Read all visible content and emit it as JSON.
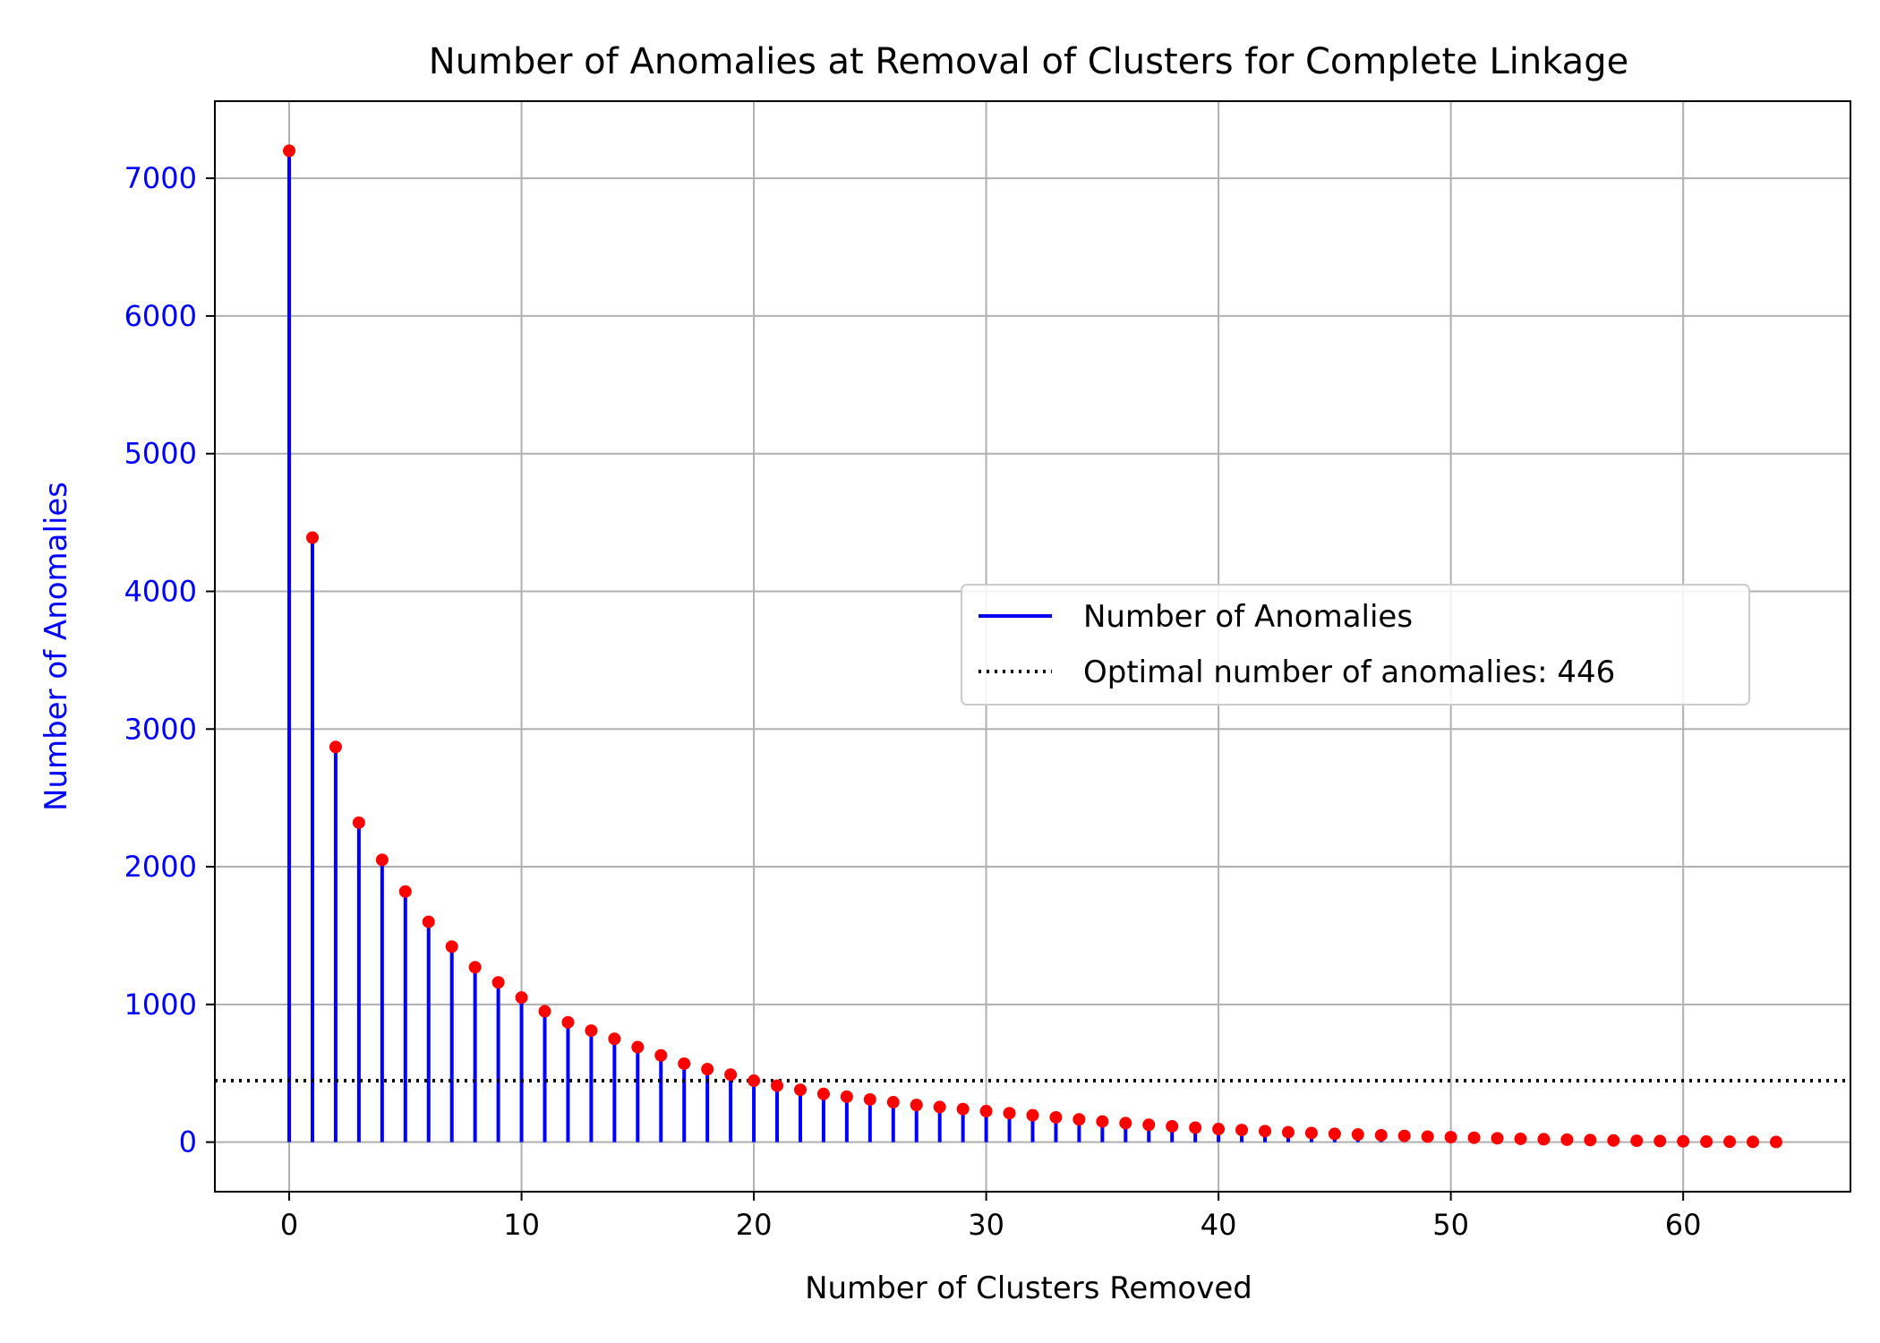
{
  "chart_data": {
    "type": "stem",
    "title": "Number of Anomalies at Removal of Clusters for Complete Linkage",
    "xlabel": "Number of Clusters Removed",
    "ylabel": "Number of Anomalies",
    "xlim": [
      -3.2,
      67.2
    ],
    "ylim": [
      -360,
      7560
    ],
    "x_ticks": [
      0,
      10,
      20,
      30,
      40,
      50,
      60
    ],
    "y_ticks": [
      0,
      1000,
      2000,
      3000,
      4000,
      5000,
      6000,
      7000
    ],
    "grid": true,
    "legend_position": "center-right",
    "x": [
      0,
      1,
      2,
      3,
      4,
      5,
      6,
      7,
      8,
      9,
      10,
      11,
      12,
      13,
      14,
      15,
      16,
      17,
      18,
      19,
      20,
      21,
      22,
      23,
      24,
      25,
      26,
      27,
      28,
      29,
      30,
      31,
      32,
      33,
      34,
      35,
      36,
      37,
      38,
      39,
      40,
      41,
      42,
      43,
      44,
      45,
      46,
      47,
      48,
      49,
      50,
      51,
      52,
      53,
      54,
      55,
      56,
      57,
      58,
      59,
      60,
      61,
      62,
      63,
      64
    ],
    "y": [
      7200,
      4390,
      2870,
      2320,
      2050,
      1820,
      1600,
      1420,
      1270,
      1160,
      1050,
      950,
      870,
      810,
      750,
      690,
      630,
      570,
      530,
      490,
      446,
      410,
      380,
      350,
      330,
      310,
      290,
      270,
      255,
      240,
      225,
      210,
      195,
      180,
      165,
      150,
      138,
      126,
      115,
      105,
      95,
      88,
      80,
      72,
      66,
      60,
      55,
      50,
      45,
      40,
      36,
      32,
      28,
      24,
      21,
      18,
      15,
      12,
      10,
      8,
      6,
      4,
      3,
      2,
      1
    ],
    "series": [
      {
        "name": "Number of Anomalies",
        "color": "#0000ff",
        "style": "stem-line"
      },
      {
        "name": "Optimal number of anomalies: 446",
        "value": 446,
        "color": "#000000",
        "style": "dotted-hline"
      }
    ],
    "marker_color": "#ff0000",
    "ylabel_color": "#0000ff",
    "ytick_color": "#0000ff"
  }
}
